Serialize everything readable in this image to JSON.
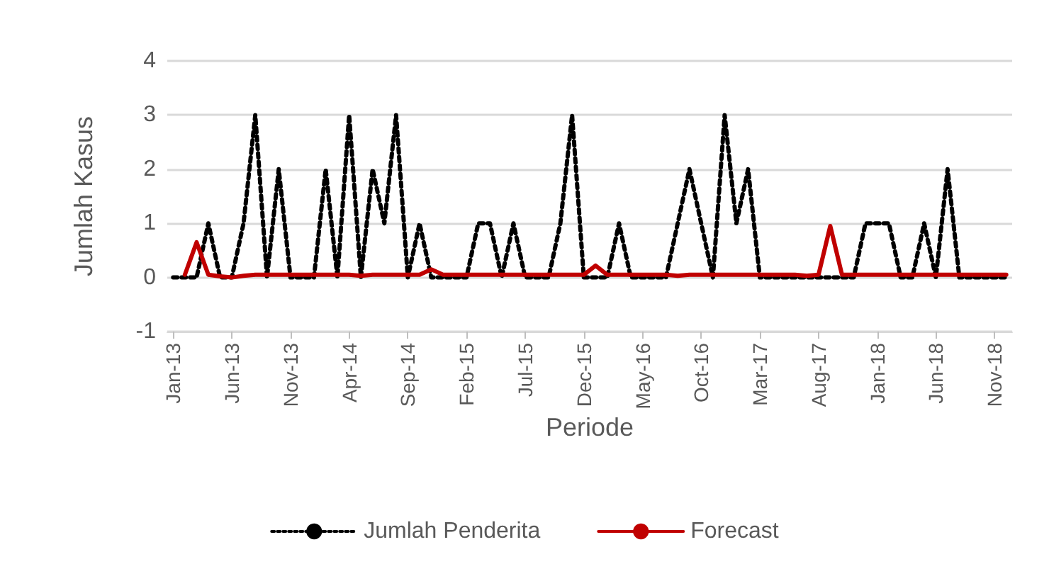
{
  "chart_data": {
    "type": "line",
    "xlabel": "Periode",
    "ylabel": "Jumlah Kasus",
    "categories": [
      "Jan-13",
      null,
      null,
      null,
      null,
      "Jun-13",
      null,
      null,
      null,
      null,
      "Nov-13",
      null,
      null,
      null,
      null,
      "Apr-14",
      null,
      null,
      null,
      null,
      "Sep-14",
      null,
      null,
      null,
      null,
      "Feb-15",
      null,
      null,
      null,
      null,
      "Jul-15",
      null,
      null,
      null,
      null,
      "Dec-15",
      null,
      null,
      null,
      null,
      "May-16",
      null,
      null,
      null,
      null,
      "Oct-16",
      null,
      null,
      null,
      null,
      "Mar-17",
      null,
      null,
      null,
      null,
      "Aug-17",
      null,
      null,
      null,
      null,
      "Jan-18",
      null,
      null,
      null,
      null,
      "Jun-18",
      null,
      null,
      null,
      null,
      "Nov-18",
      null
    ],
    "series": [
      {
        "name": "Jumlah Penderita",
        "color": "#000000",
        "line_style": "dotted",
        "values": [
          0,
          0,
          0,
          1,
          0,
          0,
          1,
          3,
          0,
          2,
          0,
          0,
          0,
          2,
          0,
          3,
          0,
          2,
          1,
          3,
          0,
          1,
          0,
          0,
          0,
          0,
          1,
          1,
          0,
          1,
          0,
          0,
          0,
          1,
          3,
          0,
          0,
          0,
          1,
          0,
          0,
          0,
          0,
          1,
          2,
          1,
          0,
          3,
          1,
          2,
          0,
          0,
          0,
          0,
          0,
          0,
          0,
          0,
          0,
          1,
          1,
          1,
          0,
          0,
          1,
          0,
          2,
          0,
          0,
          0,
          0,
          0
        ]
      },
      {
        "name": "Forecast",
        "color": "#c00000",
        "line_style": "solid",
        "values": [
          null,
          0.05,
          0.65,
          0.05,
          0.02,
          0,
          0.03,
          0.05,
          0.05,
          0.05,
          0.05,
          0.05,
          0.05,
          0.05,
          0.05,
          0.05,
          0.03,
          0.05,
          0.05,
          0.05,
          0.05,
          0.05,
          0.15,
          0.05,
          0.05,
          0.05,
          0.05,
          0.05,
          0.05,
          0.05,
          0.05,
          0.05,
          0.05,
          0.05,
          0.05,
          0.05,
          0.22,
          0.05,
          0.05,
          0.05,
          0.05,
          0.05,
          0.05,
          0.03,
          0.05,
          0.05,
          0.05,
          0.05,
          0.05,
          0.05,
          0.05,
          0.05,
          0.05,
          0.05,
          0.03,
          0.05,
          0.95,
          0.05,
          0.05,
          0.05,
          0.05,
          0.05,
          0.05,
          0.05,
          0.05,
          0.05,
          0.05,
          0.05,
          0.05,
          0.05,
          0.05,
          0.05
        ]
      }
    ],
    "ylim": [
      -1,
      4
    ],
    "yticks": [
      -1,
      0,
      1,
      2,
      3,
      4
    ],
    "grid": "y",
    "legend": "bottom",
    "marker": "none"
  }
}
